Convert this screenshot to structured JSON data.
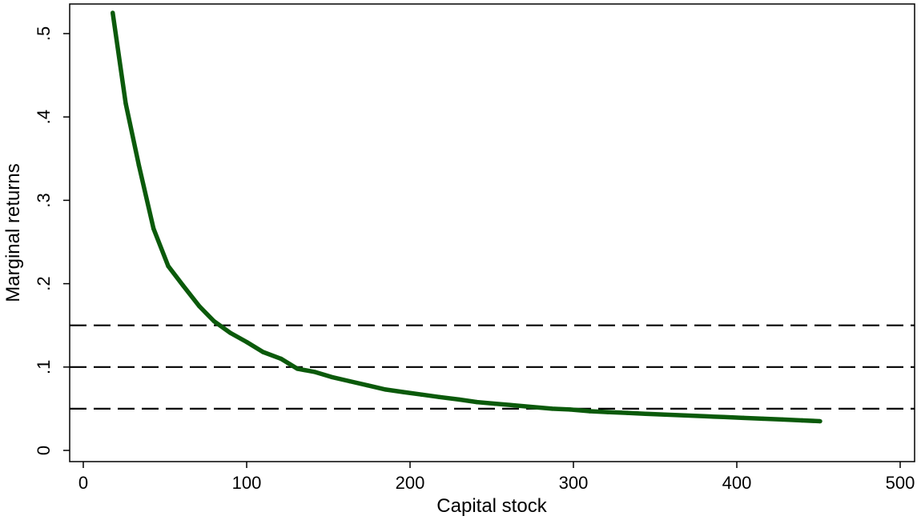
{
  "chart_data": {
    "type": "line",
    "title": "",
    "xlabel": "Capital stock",
    "ylabel": "Marginal returns",
    "xlim": [
      0,
      500
    ],
    "ylim": [
      0,
      0.5
    ],
    "x_ticks": [
      0,
      100,
      200,
      300,
      400,
      500
    ],
    "x_tick_labels": [
      "0",
      "100",
      "200",
      "300",
      "400",
      "500"
    ],
    "y_ticks": [
      0,
      0.1,
      0.2,
      0.3,
      0.4,
      0.5
    ],
    "y_tick_labels": [
      "0",
      ".1",
      ".2",
      ".3",
      ".4",
      ".5"
    ],
    "grid": false,
    "legend": "none",
    "series": [
      {
        "color": "#0b5a0b",
        "style": "solid",
        "x": [
          18,
          26,
          34,
          43,
          52,
          61,
          71,
          80,
          90,
          100,
          110,
          121,
          131,
          142,
          152,
          163,
          174,
          185,
          196,
          207,
          218,
          230,
          241,
          252,
          264,
          275,
          287,
          298,
          310,
          321,
          333,
          344,
          356,
          368,
          380,
          392,
          404,
          416,
          428,
          440,
          451
        ],
        "y": [
          0.525,
          0.416,
          0.342,
          0.266,
          0.221,
          0.198,
          0.173,
          0.155,
          0.141,
          0.13,
          0.118,
          0.11,
          0.098,
          0.094,
          0.088,
          0.083,
          0.078,
          0.073,
          0.07,
          0.067,
          0.064,
          0.061,
          0.058,
          0.056,
          0.054,
          0.052,
          0.05,
          0.049,
          0.047,
          0.046,
          0.045,
          0.044,
          0.043,
          0.042,
          0.041,
          0.04,
          0.039,
          0.038,
          0.037,
          0.036,
          0.035
        ]
      }
    ],
    "reference_lines": [
      {
        "y": 0.15,
        "style": "dashed",
        "color": "#000000"
      },
      {
        "y": 0.1,
        "style": "dashed",
        "color": "#000000"
      },
      {
        "y": 0.05,
        "style": "dashed",
        "color": "#000000"
      }
    ]
  }
}
